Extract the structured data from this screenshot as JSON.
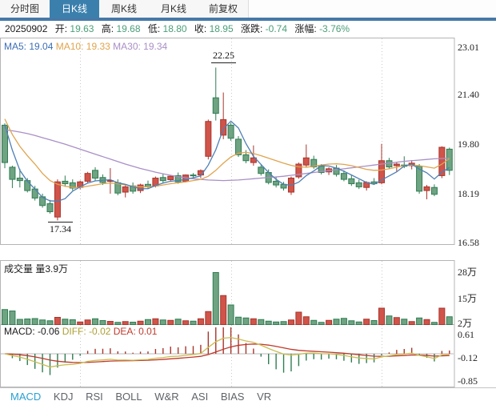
{
  "tabs": {
    "items": [
      {
        "label": "分时图",
        "active": false
      },
      {
        "label": "日K线",
        "active": true
      },
      {
        "label": "周K线",
        "active": false
      },
      {
        "label": "月K线",
        "active": false
      },
      {
        "label": "前复权",
        "active": false
      }
    ]
  },
  "info_bar": {
    "date": "20250902",
    "fields": [
      {
        "label": "开:",
        "value": "19.63"
      },
      {
        "label": "高:",
        "value": "19.68"
      },
      {
        "label": "低:",
        "value": "18.80"
      },
      {
        "label": "收:",
        "value": "18.95"
      },
      {
        "label": "涨跌:",
        "value": "-0.74"
      },
      {
        "label": "涨幅:",
        "value": "-3.76%"
      }
    ]
  },
  "ma_legend": [
    {
      "label": "MA5:",
      "value": "19.04"
    },
    {
      "label": "MA10:",
      "value": "19.33"
    },
    {
      "label": "MA30:",
      "value": "19.34"
    }
  ],
  "main_chart": {
    "y_axis_labels": [
      "23.01",
      "21.40",
      "19.80",
      "18.19",
      "16.58"
    ],
    "high_annotation": "22.25",
    "low_annotation": "17.34",
    "candles": [
      [
        20.4,
        20.46,
        19.02,
        19.2
      ],
      [
        19.05,
        19.1,
        18.38,
        18.66
      ],
      [
        18.7,
        19.0,
        18.4,
        18.62
      ],
      [
        18.62,
        18.7,
        18.24,
        18.3
      ],
      [
        18.35,
        18.45,
        17.98,
        18.06
      ],
      [
        18.1,
        18.2,
        17.75,
        17.82
      ],
      [
        17.88,
        18.0,
        17.56,
        17.62
      ],
      [
        17.45,
        18.66,
        17.34,
        18.58
      ],
      [
        18.6,
        18.78,
        18.42,
        18.52
      ],
      [
        18.55,
        18.66,
        18.3,
        18.38
      ],
      [
        18.4,
        18.62,
        18.34,
        18.58
      ],
      [
        18.6,
        18.9,
        18.55,
        18.85
      ],
      [
        18.95,
        19.05,
        18.62,
        18.7
      ],
      [
        18.72,
        18.82,
        18.48,
        18.56
      ],
      [
        18.6,
        19.02,
        18.2,
        18.62
      ],
      [
        18.55,
        18.66,
        18.15,
        18.22
      ],
      [
        18.25,
        18.48,
        18.08,
        18.42
      ],
      [
        18.45,
        18.56,
        18.2,
        18.28
      ],
      [
        18.3,
        18.52,
        18.22,
        18.48
      ],
      [
        18.5,
        18.62,
        18.35,
        18.42
      ],
      [
        18.45,
        18.75,
        18.4,
        18.7
      ],
      [
        18.72,
        18.85,
        18.55,
        18.62
      ],
      [
        18.65,
        18.8,
        18.58,
        18.76
      ],
      [
        18.78,
        18.88,
        18.52,
        18.58
      ],
      [
        18.6,
        18.82,
        18.56,
        18.8
      ],
      [
        18.8,
        18.86,
        18.72,
        18.78
      ],
      [
        18.8,
        18.98,
        18.7,
        18.94
      ],
      [
        19.4,
        20.58,
        19.3,
        20.52
      ],
      [
        21.28,
        22.25,
        20.55,
        20.78
      ],
      [
        20.08,
        21.45,
        19.95,
        20.58
      ],
      [
        20.4,
        20.48,
        19.9,
        19.98
      ],
      [
        19.95,
        20.05,
        19.38,
        19.45
      ],
      [
        19.45,
        19.6,
        19.18,
        19.26
      ],
      [
        19.2,
        19.75,
        19.1,
        19.35
      ],
      [
        19.05,
        19.12,
        18.78,
        18.85
      ],
      [
        18.88,
        18.98,
        18.5,
        18.56
      ],
      [
        18.6,
        18.74,
        18.4,
        18.48
      ],
      [
        18.5,
        18.58,
        18.3,
        18.38
      ],
      [
        18.25,
        18.75,
        18.16,
        18.7
      ],
      [
        18.74,
        19.2,
        18.68,
        19.15
      ],
      [
        19.12,
        19.78,
        19.05,
        19.35
      ],
      [
        19.3,
        19.42,
        19.0,
        19.06
      ],
      [
        19.08,
        19.15,
        18.82,
        18.88
      ],
      [
        18.9,
        19.05,
        18.8,
        19.0
      ],
      [
        19.02,
        19.12,
        18.75,
        18.82
      ],
      [
        18.85,
        18.95,
        18.6,
        18.66
      ],
      [
        18.68,
        18.8,
        18.45,
        18.52
      ],
      [
        18.55,
        18.65,
        18.35,
        18.42
      ],
      [
        18.4,
        18.6,
        18.3,
        18.56
      ],
      [
        18.58,
        18.7,
        18.48,
        18.52
      ],
      [
        18.55,
        19.8,
        18.5,
        19.26
      ],
      [
        19.26,
        19.35,
        19.0,
        19.06
      ],
      [
        19.1,
        19.22,
        18.92,
        19.15
      ],
      [
        19.12,
        19.4,
        19.02,
        19.08
      ],
      [
        19.1,
        19.28,
        18.98,
        19.18
      ],
      [
        19.08,
        19.15,
        18.2,
        18.28
      ],
      [
        18.3,
        18.48,
        18.02,
        18.42
      ],
      [
        18.4,
        18.5,
        18.12,
        18.18
      ],
      [
        18.78,
        19.72,
        18.7,
        19.69
      ],
      [
        19.63,
        19.68,
        18.8,
        18.95
      ]
    ],
    "ma5": [
      20.4,
      19.6,
      18.95,
      18.6,
      18.35,
      18.08,
      17.97,
      17.96,
      18.04,
      18.28,
      18.42,
      18.54,
      18.61,
      18.63,
      18.65,
      18.55,
      18.5,
      18.42,
      18.36,
      18.36,
      18.46,
      18.54,
      18.6,
      18.62,
      18.66,
      18.71,
      18.77,
      19.12,
      19.61,
      20.28,
      20.53,
      20.31,
      19.81,
      19.4,
      19.14,
      18.88,
      18.66,
      18.5,
      18.47,
      18.57,
      18.78,
      18.93,
      19.1,
      19.09,
      19.02,
      18.92,
      18.8,
      18.68,
      18.56,
      18.5,
      18.64,
      18.77,
      18.9,
      19.09,
      19.15,
      18.99,
      18.87,
      18.67,
      18.89,
      19.04
    ],
    "ma10": [
      20.6,
      20.1,
      19.72,
      19.42,
      19.15,
      18.85,
      18.62,
      18.5,
      18.44,
      18.4,
      18.4,
      18.44,
      18.48,
      18.52,
      18.54,
      18.52,
      18.48,
      18.44,
      18.42,
      18.42,
      18.44,
      18.48,
      18.52,
      18.55,
      18.58,
      18.62,
      18.66,
      18.76,
      18.95,
      19.18,
      19.38,
      19.5,
      19.53,
      19.49,
      19.42,
      19.34,
      19.26,
      19.18,
      19.11,
      19.06,
      19.05,
      19.08,
      19.12,
      19.15,
      19.16,
      19.14,
      19.1,
      19.04,
      18.98,
      18.95,
      18.96,
      19.0,
      19.05,
      19.1,
      19.12,
      19.1,
      19.06,
      19.02,
      19.15,
      19.33
    ],
    "ma30": [
      20.25,
      20.22,
      20.18,
      20.13,
      20.07,
      20.0,
      19.93,
      19.86,
      19.79,
      19.71,
      19.63,
      19.55,
      19.47,
      19.39,
      19.31,
      19.23,
      19.15,
      19.08,
      19.01,
      18.95,
      18.89,
      18.84,
      18.79,
      18.75,
      18.71,
      18.68,
      18.66,
      18.64,
      18.63,
      18.62,
      18.63,
      18.64,
      18.66,
      18.68,
      18.7,
      18.72,
      18.74,
      18.76,
      18.79,
      18.82,
      18.85,
      18.88,
      18.91,
      18.94,
      18.97,
      19.0,
      19.03,
      19.06,
      19.09,
      19.12,
      19.15,
      19.18,
      19.21,
      19.24,
      19.26,
      19.28,
      19.3,
      19.32,
      19.33,
      19.34
    ]
  },
  "volume_panel": {
    "title": "成交量",
    "current": "量3.9万",
    "y_axis_labels": [
      "28万",
      "15万",
      "2万"
    ],
    "values": [
      7.5,
      6.8,
      2.6,
      2.8,
      3.0,
      2.3,
      1.9,
      3.6,
      2.7,
      2.4,
      1.3,
      2.3,
      2.9,
      2.0,
      1.6,
      1.1,
      1.5,
      1.2,
      1.7,
      2.5,
      2.9,
      2.3,
      2.1,
      2.7,
      1.9,
      1.7,
      2.9,
      6.5,
      26.0,
      14.5,
      9.8,
      3.7,
      3.3,
      2.9,
      2.5,
      1.7,
      1.3,
      1.5,
      2.3,
      6.2,
      3.9,
      2.1,
      1.1,
      2.1,
      2.7,
      3.1,
      1.9,
      1.3,
      2.7,
      2.0,
      8.2,
      4.3,
      3.5,
      2.7,
      1.5,
      3.3,
      2.5,
      1.1,
      8.2,
      3.9
    ]
  },
  "macd_panel": {
    "labels": [
      {
        "label": "MACD:",
        "value": "-0.06"
      },
      {
        "label": "DIFF:",
        "value": "-0.02"
      },
      {
        "label": "DEA:",
        "value": "0.01"
      }
    ],
    "y_axis_labels": [
      "0.61",
      "-0.12",
      "-0.85"
    ]
  },
  "indicator_tabs": [
    "MACD",
    "KDJ",
    "RSI",
    "BOLL",
    "W&R",
    "ASI",
    "BIAS",
    "VR"
  ],
  "colors": {
    "up_fill": "#d0544a",
    "up_stroke": "#a8352c",
    "down_fill": "#6fa381",
    "down_stroke": "#2f7d53",
    "ma5": "#4e7fb5",
    "ma10": "#e0a44e",
    "ma30": "#a98fc6",
    "diff_line": "#c9bc50",
    "dea_line": "#c0392b",
    "grid": "#c9c9c9",
    "border": "#b5b5b5",
    "tab_active_bg": "#3b80ad",
    "value_green": "#4a9e78",
    "indicator_active": "#2aa0d2"
  }
}
